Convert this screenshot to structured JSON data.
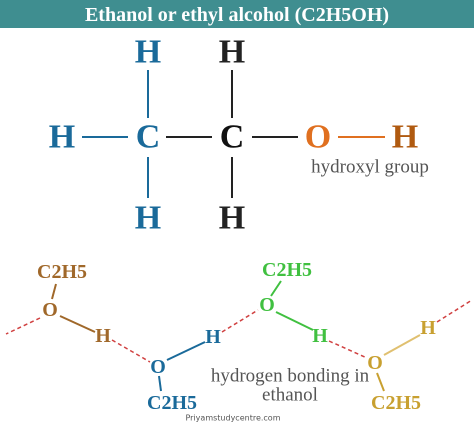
{
  "title": "Ethanol or ethyl alcohol (C2H5OH)",
  "structure": {
    "atoms": [
      "H",
      "H",
      "H",
      "C",
      "C",
      "O",
      "H",
      "H",
      "H"
    ],
    "label": "hydroxyl group"
  },
  "bonding": {
    "molecules": [
      {
        "group": "C2H5",
        "o": "O",
        "h": "H"
      },
      {
        "group": "C2H5",
        "o": "O",
        "h": "H"
      },
      {
        "group": "C2H5",
        "o": "O",
        "h": "H"
      },
      {
        "group": "C2H5",
        "o": "O",
        "h": "H"
      }
    ],
    "caption": [
      "hydrogen bonding in",
      "ethanol"
    ]
  },
  "watermark": "Priyamstudycentre.com"
}
